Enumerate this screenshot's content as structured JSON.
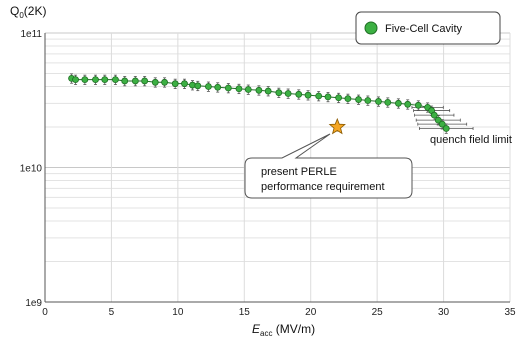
{
  "chart_data": {
    "type": "scatter",
    "y_title_base": "Q",
    "y_title_sub": "0",
    "y_title_rest": "(2K)",
    "x_title_base": "E",
    "x_title_sub": "acc",
    "x_title_rest": " (MV/m)",
    "xlim": [
      0,
      35
    ],
    "ylim": [
      1000000000.0,
      100000000000.0
    ],
    "yscale": "log",
    "x_ticks": [
      0,
      5,
      10,
      15,
      20,
      25,
      30,
      35
    ],
    "x_tick_labels": [
      "0",
      "5",
      "10",
      "15",
      "20",
      "25",
      "30",
      "35"
    ],
    "y_ticks": [
      1000000000.0,
      10000000000.0,
      100000000000.0
    ],
    "y_tick_labels": [
      "1e9",
      "1e10",
      "1e11"
    ],
    "grid": true,
    "legend_position": "top-right",
    "series": [
      {
        "name": "Five-Cell Cavity",
        "color": "#3cb043",
        "marker": "circle",
        "x": [
          2.0,
          2.3,
          3.0,
          3.8,
          4.5,
          5.3,
          6.0,
          6.8,
          7.5,
          8.3,
          9.0,
          9.8,
          10.5,
          11.1,
          11.5,
          12.3,
          13.0,
          13.8,
          14.6,
          15.3,
          16.1,
          16.8,
          17.6,
          18.3,
          19.1,
          19.8,
          20.6,
          21.3,
          22.1,
          22.8,
          23.6,
          24.3,
          25.1,
          25.8,
          26.6,
          27.3,
          28.1,
          28.8,
          29.1,
          29.3,
          29.6,
          29.9,
          30.2
        ],
        "y": [
          46000000000.0,
          45000000000.0,
          45000000000.0,
          45000000000.0,
          45000000000.0,
          45000000000.0,
          44000000000.0,
          44000000000.0,
          44000000000.0,
          43000000000.0,
          43000000000.0,
          42000000000.0,
          42000000000.0,
          41000000000.0,
          40500000000.0,
          40000000000.0,
          39500000000.0,
          39000000000.0,
          38500000000.0,
          38000000000.0,
          37500000000.0,
          37000000000.0,
          36000000000.0,
          35500000000.0,
          35000000000.0,
          34500000000.0,
          34000000000.0,
          33500000000.0,
          33000000000.0,
          32500000000.0,
          32000000000.0,
          31500000000.0,
          31000000000.0,
          30500000000.0,
          30000000000.0,
          29500000000.0,
          29000000000.0,
          28000000000.0,
          26500000000.0,
          24500000000.0,
          22500000000.0,
          21000000000.0,
          19500000000.0
        ],
        "y_err_rel": 0.08
      }
    ],
    "requirement_point": {
      "x": 22.0,
      "y": 20000000000.0,
      "color": "#f5a623"
    },
    "annotations": [
      {
        "text": "quench field limit"
      },
      {
        "lines": [
          "present PERLE",
          "performance requirement"
        ]
      }
    ]
  }
}
